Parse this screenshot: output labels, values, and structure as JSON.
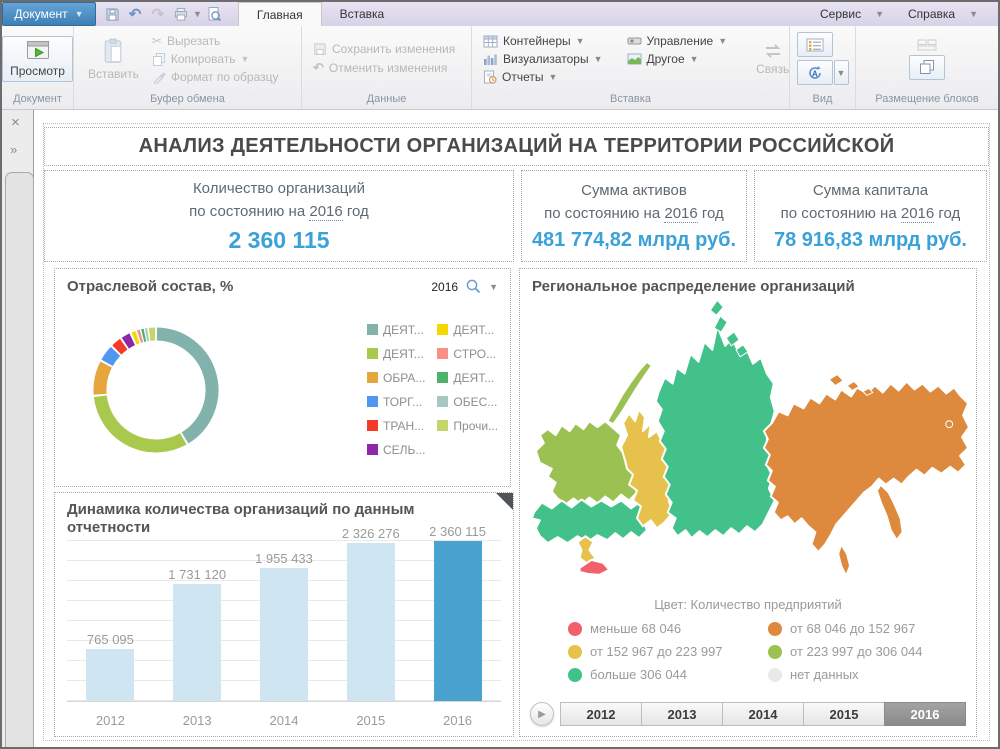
{
  "window": {
    "app_menu_label": "Документ",
    "tabs": [
      {
        "label": "Главная",
        "active": true
      },
      {
        "label": "Вставка",
        "active": false
      }
    ],
    "menus_right": [
      {
        "label": "Сервис"
      },
      {
        "label": "Справка"
      }
    ]
  },
  "ribbon": {
    "groups": [
      {
        "label": "Документ"
      },
      {
        "label": "Буфер обмена"
      },
      {
        "label": "Данные"
      },
      {
        "label": "Вставка"
      },
      {
        "label": "Вид"
      },
      {
        "label": "Размещение блоков"
      }
    ],
    "buttons": {
      "preview": "Просмотр",
      "paste": "Вставить",
      "cut": "Вырезать",
      "copy": "Копировать",
      "format_painter": "Формат по образцу",
      "save_changes": "Сохранить изменения",
      "undo_changes": "Отменить изменения",
      "containers": "Контейнеры",
      "visualizers": "Визуализаторы",
      "reports": "Отчеты",
      "management": "Управление",
      "other": "Другое",
      "link": "Связь"
    }
  },
  "sidebar": {
    "close": "×",
    "expand": "»"
  },
  "dashboard": {
    "title": "АНАЛИЗ ДЕЯТЕЛЬНОСТИ ОРГАНИЗАЦИЙ НА ТЕРРИТОРИИ РОССИЙСКОЙ",
    "kpi_cards": [
      {
        "line1": "Количество организаций",
        "prefix": "по состоянию на",
        "year": "2016",
        "suffix": "год",
        "value": "2 360 115"
      },
      {
        "line1": "Сумма активов",
        "prefix": "по состоянию на",
        "year": "2016",
        "suffix": "год",
        "value": "481 774,82 млрд руб."
      },
      {
        "line1": "Сумма капитала",
        "prefix": "по состоянию на",
        "year": "2016",
        "suffix": "год",
        "value": "78 916,83 млрд руб."
      }
    ]
  },
  "chart_data": [
    {
      "type": "pie",
      "donut": true,
      "title": "Отраслевой состав, %",
      "year_filter": "2016",
      "legend_position": "right",
      "series": [
        {
          "label": "ДЕЯТ...",
          "value": 41.6,
          "color": "#82b2ac"
        },
        {
          "label": "ДЕЯТ...",
          "value": 31.9,
          "color": "#a9c94d"
        },
        {
          "label": "ОБРА...",
          "value": 9.3,
          "color": "#e5a63d"
        },
        {
          "label": "ТОРГ...",
          "value": 4.6,
          "color": "#4f97f0"
        },
        {
          "label": "ТРАН...",
          "value": 3.1,
          "color": "#f43b27"
        },
        {
          "label": "СЕЛЬ...",
          "value": 2.8,
          "color": "#8d27a8"
        },
        {
          "label": "ДЕЯТ...",
          "value": 1.6,
          "color": "#f4d803"
        },
        {
          "label": "СТРО...",
          "value": 1.1,
          "color": "#f98f85"
        },
        {
          "label": "ДЕЯТ...",
          "value": 1.0,
          "color": "#4db36a"
        },
        {
          "label": "ОБЕС...",
          "value": 0.9,
          "color": "#a6c8c3"
        },
        {
          "label": "Прочи...",
          "value": 2.1,
          "color": "#c2d66b"
        }
      ]
    },
    {
      "type": "bar",
      "title": "Динамика количества организаций по данным отчетности",
      "categories": [
        "2012",
        "2013",
        "2014",
        "2015",
        "2016"
      ],
      "values": [
        765095,
        1731120,
        1955433,
        2326276,
        2360115
      ],
      "value_labels": [
        "765 095",
        "1 731 120",
        "1 955 433",
        "2 326 276",
        "2 360 115"
      ],
      "highlight_index": 4,
      "bar_color": "#cfe5f2",
      "highlight_color": "#4aa2cf",
      "ylim": [
        0,
        2360115
      ],
      "grid": true
    },
    {
      "type": "choropleth",
      "title": "Региональное распределение организаций",
      "legend_title": "Цвет: Количество предприятий",
      "classes": [
        {
          "label": "меньше 68 046",
          "color": "#f2616b"
        },
        {
          "label": "от 68 046 до 152 967",
          "color": "#de8a3e"
        },
        {
          "label": "от 152 967 до 223 997",
          "color": "#e6c24c"
        },
        {
          "label": "от 223 997 до 306 044",
          "color": "#9cc153"
        },
        {
          "label": "больше 306 044",
          "color": "#43c18b"
        },
        {
          "label": "нет данных",
          "color": "#e9e9e9"
        }
      ],
      "region_classes": {
        "northwest": 3,
        "central_volga": 4,
        "urals": 2,
        "south": 2,
        "north_caucasus": 0,
        "siberia": 4,
        "far_east": 1,
        "kamchatka": 1,
        "sakhalin": 1,
        "novaya_zemlya": 3,
        "arctic_islands": 4,
        "eastern_islands": 1
      },
      "timeline_years": [
        "2012",
        "2013",
        "2014",
        "2015",
        "2016"
      ],
      "selected_year": "2016"
    }
  ]
}
